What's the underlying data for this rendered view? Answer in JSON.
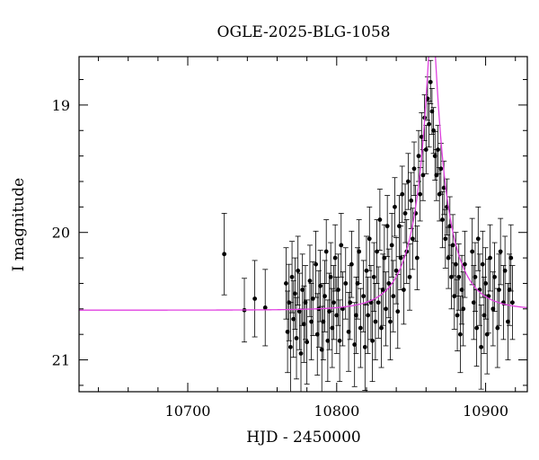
{
  "chart_data": {
    "type": "scatter",
    "title": "OGLE-2025-BLG-1058",
    "xlabel": "HJD - 2450000",
    "ylabel": "I magnitude",
    "xlim": [
      10627,
      10928
    ],
    "ylim": [
      21.25,
      18.62
    ],
    "y_inverted": true,
    "x_ticks": [
      10700,
      10800,
      10900
    ],
    "y_ticks": [
      19,
      20,
      21
    ],
    "grid": false,
    "point_color": "#000000",
    "model_color": "#e040e0",
    "series": [
      {
        "kind": "photometry",
        "points": [
          [
            10724.5,
            20.17,
            0.32
          ],
          [
            10738.0,
            20.61,
            0.25
          ],
          [
            10745.0,
            20.52,
            0.3
          ],
          [
            10752.0,
            20.59,
            0.3
          ],
          [
            10766,
            20.4,
            0.28
          ],
          [
            10767,
            20.78,
            0.32
          ],
          [
            10768,
            20.55,
            0.3
          ],
          [
            10769,
            20.9,
            0.35
          ],
          [
            10770,
            20.35,
            0.28
          ],
          [
            10771,
            20.68,
            0.3
          ],
          [
            10772,
            20.48,
            0.28
          ],
          [
            10773,
            20.83,
            0.32
          ],
          [
            10774,
            20.3,
            0.27
          ],
          [
            10775,
            20.62,
            0.3
          ],
          [
            10776,
            20.95,
            0.35
          ],
          [
            10777,
            20.45,
            0.28
          ],
          [
            10778,
            20.72,
            0.3
          ],
          [
            10779,
            20.55,
            0.29
          ],
          [
            10780,
            20.86,
            0.33
          ],
          [
            10782,
            20.38,
            0.28
          ],
          [
            10783,
            20.7,
            0.3
          ],
          [
            10784,
            20.52,
            0.29
          ],
          [
            10786,
            20.25,
            0.26
          ],
          [
            10787,
            20.8,
            0.32
          ],
          [
            10788,
            20.6,
            0.3
          ],
          [
            10789,
            20.42,
            0.28
          ],
          [
            10790,
            20.92,
            0.34
          ],
          [
            10791,
            20.7,
            0.3
          ],
          [
            10792,
            20.5,
            0.28
          ],
          [
            10793,
            20.15,
            0.25
          ],
          [
            10794,
            20.85,
            0.32
          ],
          [
            10795,
            20.62,
            0.3
          ],
          [
            10796,
            20.35,
            0.27
          ],
          [
            10797,
            20.75,
            0.31
          ],
          [
            10798,
            20.55,
            0.29
          ],
          [
            10799,
            20.2,
            0.26
          ],
          [
            10800,
            20.65,
            0.3
          ],
          [
            10801,
            20.45,
            0.28
          ],
          [
            10802,
            20.85,
            0.32
          ],
          [
            10803,
            20.1,
            0.25
          ],
          [
            10804,
            20.6,
            0.29
          ],
          [
            10806,
            20.4,
            0.28
          ],
          [
            10808,
            20.78,
            0.31
          ],
          [
            10809,
            20.55,
            0.29
          ],
          [
            10810,
            20.25,
            0.26
          ],
          [
            10812,
            20.88,
            0.33
          ],
          [
            10813,
            20.65,
            0.3
          ],
          [
            10814,
            20.4,
            0.28
          ],
          [
            10815,
            20.15,
            0.25
          ],
          [
            10816,
            20.75,
            0.31
          ],
          [
            10818,
            20.5,
            0.28
          ],
          [
            10819,
            20.9,
            0.34
          ],
          [
            10820,
            20.3,
            0.27
          ],
          [
            10821,
            20.65,
            0.3
          ],
          [
            10822,
            20.05,
            0.25
          ],
          [
            10823,
            20.55,
            0.29
          ],
          [
            10824,
            20.85,
            0.32
          ],
          [
            10825,
            20.35,
            0.27
          ],
          [
            10826,
            20.7,
            0.3
          ],
          [
            10827,
            20.15,
            0.25
          ],
          [
            10828,
            20.55,
            0.28
          ],
          [
            10829,
            19.9,
            0.24
          ],
          [
            10830,
            20.75,
            0.31
          ],
          [
            10831,
            20.45,
            0.28
          ],
          [
            10832,
            20.2,
            0.26
          ],
          [
            10833,
            20.6,
            0.29
          ],
          [
            10834,
            19.95,
            0.24
          ],
          [
            10835,
            20.4,
            0.27
          ],
          [
            10836,
            20.7,
            0.3
          ],
          [
            10837,
            20.1,
            0.25
          ],
          [
            10838,
            20.5,
            0.28
          ],
          [
            10839,
            19.8,
            0.23
          ],
          [
            10840,
            20.3,
            0.26
          ],
          [
            10841,
            20.62,
            0.29
          ],
          [
            10842,
            19.95,
            0.24
          ],
          [
            10843,
            20.2,
            0.25
          ],
          [
            10844,
            19.7,
            0.22
          ],
          [
            10845,
            20.45,
            0.27
          ],
          [
            10846,
            19.85,
            0.23
          ],
          [
            10847,
            20.15,
            0.25
          ],
          [
            10848,
            19.6,
            0.22
          ],
          [
            10849,
            20.35,
            0.26
          ],
          [
            10850,
            19.75,
            0.22
          ],
          [
            10851,
            20.05,
            0.24
          ],
          [
            10852,
            19.5,
            0.21
          ],
          [
            10853,
            19.85,
            0.22
          ],
          [
            10854,
            20.2,
            0.25
          ],
          [
            10855,
            19.4,
            0.2
          ],
          [
            10856,
            19.7,
            0.21
          ],
          [
            10857,
            19.25,
            0.19
          ],
          [
            10858,
            19.55,
            0.2
          ],
          [
            10859,
            19.1,
            0.18
          ],
          [
            10860,
            19.35,
            0.19
          ],
          [
            10861,
            18.95,
            0.17
          ],
          [
            10862,
            19.15,
            0.18
          ],
          [
            10863,
            18.82,
            0.17
          ],
          [
            10864,
            19.05,
            0.18
          ],
          [
            10865,
            19.2,
            0.18
          ],
          [
            10866,
            19.4,
            0.19
          ],
          [
            10867,
            19.55,
            0.2
          ],
          [
            10868,
            19.35,
            0.19
          ],
          [
            10869,
            19.7,
            0.21
          ],
          [
            10870,
            19.5,
            0.2
          ],
          [
            10871,
            19.9,
            0.22
          ],
          [
            10872,
            19.65,
            0.21
          ],
          [
            10873,
            20.05,
            0.23
          ],
          [
            10874,
            19.8,
            0.22
          ],
          [
            10875,
            20.2,
            0.24
          ],
          [
            10876,
            19.95,
            0.23
          ],
          [
            10877,
            20.35,
            0.25
          ],
          [
            10878,
            20.1,
            0.24
          ],
          [
            10879,
            20.5,
            0.26
          ],
          [
            10880,
            20.25,
            0.25
          ],
          [
            10881,
            20.65,
            0.28
          ],
          [
            10882,
            20.35,
            0.26
          ],
          [
            10883,
            20.8,
            0.3
          ],
          [
            10884,
            20.45,
            0.27
          ],
          [
            10885,
            20.6,
            0.29
          ],
          [
            10886,
            20.25,
            0.26
          ],
          [
            10891,
            20.15,
            0.26
          ],
          [
            10892,
            20.55,
            0.29
          ],
          [
            10893,
            20.35,
            0.27
          ],
          [
            10894,
            20.75,
            0.3
          ],
          [
            10895,
            20.05,
            0.25
          ],
          [
            10896,
            20.45,
            0.28
          ],
          [
            10897,
            20.9,
            0.33
          ],
          [
            10898,
            20.25,
            0.26
          ],
          [
            10899,
            20.65,
            0.3
          ],
          [
            10900,
            20.4,
            0.28
          ],
          [
            10901,
            20.8,
            0.31
          ],
          [
            10902,
            20.5,
            0.29
          ],
          [
            10903,
            20.2,
            0.26
          ],
          [
            10905,
            20.6,
            0.29
          ],
          [
            10906,
            20.35,
            0.27
          ],
          [
            10908,
            20.75,
            0.31
          ],
          [
            10909,
            20.45,
            0.28
          ],
          [
            10910,
            20.15,
            0.26
          ],
          [
            10912,
            20.55,
            0.29
          ],
          [
            10913,
            20.3,
            0.27
          ],
          [
            10915,
            20.7,
            0.3
          ],
          [
            10916,
            20.45,
            0.28
          ],
          [
            10917,
            20.2,
            0.26
          ],
          [
            10918,
            20.55,
            0.29
          ]
        ]
      },
      {
        "kind": "model",
        "t0": 10864,
        "u0": 0.12,
        "tE": 22,
        "baseline_mag": 20.61
      }
    ]
  }
}
